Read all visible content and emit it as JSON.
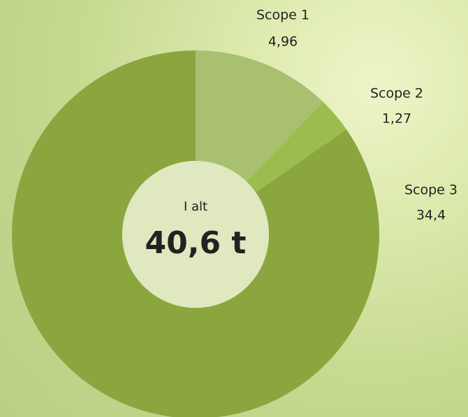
{
  "chart_data": {
    "type": "donut",
    "categories": [
      "Scope 1",
      "Scope 2",
      "Scope 3"
    ],
    "values": [
      4.96,
      1.27,
      34.4
    ],
    "value_labels": [
      "4,96",
      "1,27",
      "34,4"
    ],
    "colors": [
      "#a8c070",
      "#9cbc4e",
      "#8ba63f"
    ],
    "center_label": "I alt",
    "center_value": "40,6 t"
  }
}
